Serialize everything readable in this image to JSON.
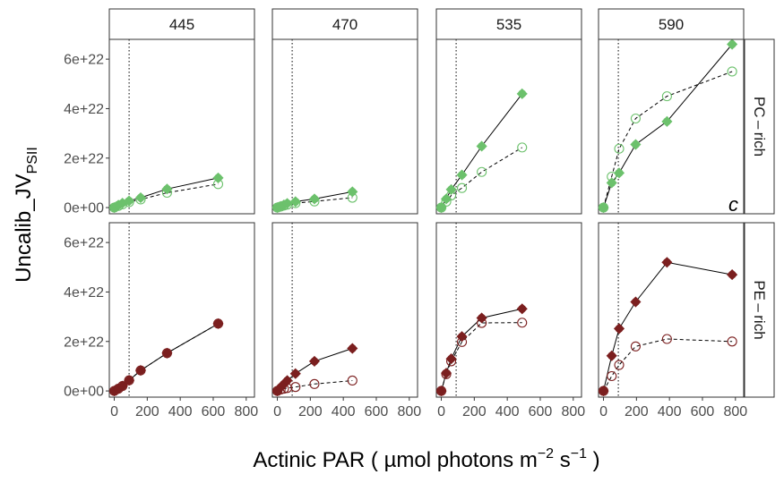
{
  "chart_data": {
    "type": "scatter",
    "x_label": {
      "main": "Actinic PAR ( µmol photons  m",
      "exp1": "−2",
      "mid": "  s",
      "exp2": "−1",
      "tail": " )"
    },
    "y_label": {
      "main": "Uncalib_JV",
      "sub": "PSII"
    },
    "x_ticks": [
      0,
      200,
      400,
      600,
      800
    ],
    "x_tick_labels": [
      "0",
      "200",
      "400",
      "600",
      "800"
    ],
    "y_ticks": [
      0,
      2e+22,
      4e+22,
      6e+22
    ],
    "y_tick_labels": [
      "0e+00",
      "2e+22",
      "4e+22",
      "6e+22"
    ],
    "xlim": [
      -30,
      850
    ],
    "ylim": [
      -2.5e+21,
      6.8e+22
    ],
    "vline_x": 90,
    "columns": [
      "445",
      "470",
      "535",
      "590"
    ],
    "rows": [
      "PC – rich",
      "PE – rich"
    ],
    "annotation": {
      "text": "c",
      "row": 0,
      "col": 3
    },
    "colors": {
      "PC - rich": "#6cc16c",
      "PE - rich": "#7b1f1f",
      "solid_line": "#000000",
      "dashed_line": "#000000"
    },
    "panels": [
      {
        "row": 0,
        "col": 0,
        "color_key": "PC - rich",
        "solid": [
          [
            0,
            0
          ],
          [
            25,
            1e+21
          ],
          [
            50,
            1.8e+21
          ],
          [
            90,
            2.7e+21
          ],
          [
            160,
            4e+21
          ],
          [
            320,
            7.5e+21
          ],
          [
            630,
            1.2e+22
          ]
        ],
        "open": [
          [
            0,
            0
          ],
          [
            25,
            7e+20
          ],
          [
            50,
            1.3e+21
          ],
          [
            90,
            2.2e+21
          ],
          [
            160,
            3.3e+21
          ],
          [
            320,
            6e+21
          ],
          [
            630,
            9.5e+21
          ]
        ]
      },
      {
        "row": 0,
        "col": 1,
        "color_key": "PC - rich",
        "solid": [
          [
            0,
            0
          ],
          [
            20,
            5e+20
          ],
          [
            40,
            1.1e+21
          ],
          [
            60,
            1.7e+21
          ],
          [
            110,
            2.4e+21
          ],
          [
            225,
            3.5e+21
          ],
          [
            455,
            6.4e+21
          ]
        ],
        "open": [
          [
            0,
            0
          ],
          [
            20,
            4e+20
          ],
          [
            40,
            8e+20
          ],
          [
            60,
            1.2e+21
          ],
          [
            110,
            1.8e+21
          ],
          [
            225,
            2.5e+21
          ],
          [
            455,
            4e+21
          ]
        ]
      },
      {
        "row": 0,
        "col": 2,
        "color_key": "PC - rich",
        "solid": [
          [
            0,
            0
          ],
          [
            30,
            3.5e+21
          ],
          [
            60,
            7.3e+21
          ],
          [
            125,
            1.32e+22
          ],
          [
            245,
            2.48e+22
          ],
          [
            490,
            4.6e+22
          ]
        ],
        "open": [
          [
            0,
            0
          ],
          [
            30,
            2.4e+21
          ],
          [
            60,
            4.9e+21
          ],
          [
            125,
            7.9e+21
          ],
          [
            245,
            1.44e+22
          ],
          [
            490,
            2.43e+22
          ]
        ]
      },
      {
        "row": 0,
        "col": 3,
        "color_key": "PC - rich",
        "solid": [
          [
            0,
            0
          ],
          [
            50,
            1e+22
          ],
          [
            95,
            1.4e+22
          ],
          [
            195,
            2.55e+22
          ],
          [
            385,
            3.48e+22
          ],
          [
            780,
            6.6e+22
          ]
        ],
        "open": [
          [
            0,
            0
          ],
          [
            50,
            1.25e+22
          ],
          [
            95,
            2.38e+22
          ],
          [
            195,
            3.6e+22
          ],
          [
            385,
            4.5e+22
          ],
          [
            780,
            5.5e+22
          ]
        ]
      },
      {
        "row": 1,
        "col": 0,
        "color_key": "PE - rich",
        "solid": [
          [
            0,
            0
          ],
          [
            25,
            9e+20
          ],
          [
            50,
            2e+21
          ],
          [
            90,
            4.3e+21
          ],
          [
            160,
            8.3e+21
          ],
          [
            320,
            1.53e+22
          ],
          [
            630,
            2.72e+22
          ]
        ],
        "open": [
          [
            0,
            0
          ],
          [
            25,
            9e+20
          ],
          [
            50,
            2e+21
          ],
          [
            90,
            4.3e+21
          ],
          [
            160,
            8.3e+21
          ],
          [
            320,
            1.53e+22
          ],
          [
            630,
            2.72e+22
          ]
        ]
      },
      {
        "row": 1,
        "col": 1,
        "color_key": "PE - rich",
        "solid": [
          [
            0,
            0
          ],
          [
            20,
            1.5e+21
          ],
          [
            40,
            2.8e+21
          ],
          [
            60,
            4.2e+21
          ],
          [
            110,
            7e+21
          ],
          [
            225,
            1.2e+22
          ],
          [
            455,
            1.72e+22
          ]
        ],
        "open": [
          [
            0,
            0
          ],
          [
            20,
            6e+20
          ],
          [
            40,
            9e+20
          ],
          [
            60,
            1.2e+21
          ],
          [
            110,
            1.6e+21
          ],
          [
            225,
            2.8e+21
          ],
          [
            455,
            4.2e+21
          ]
        ]
      },
      {
        "row": 1,
        "col": 2,
        "color_key": "PE - rich",
        "solid": [
          [
            0,
            0
          ],
          [
            30,
            7.2e+21
          ],
          [
            60,
            1.3e+22
          ],
          [
            125,
            2.2e+22
          ],
          [
            245,
            2.95e+22
          ],
          [
            490,
            3.32e+22
          ]
        ],
        "open": [
          [
            0,
            0
          ],
          [
            30,
            6.8e+21
          ],
          [
            60,
            1.2e+22
          ],
          [
            125,
            1.98e+22
          ],
          [
            245,
            2.75e+22
          ],
          [
            490,
            2.76e+22
          ]
        ]
      },
      {
        "row": 1,
        "col": 3,
        "color_key": "PE - rich",
        "solid": [
          [
            0,
            0
          ],
          [
            50,
            1.42e+22
          ],
          [
            95,
            2.52e+22
          ],
          [
            195,
            3.6e+22
          ],
          [
            385,
            5.2e+22
          ],
          [
            780,
            4.7e+22
          ]
        ],
        "open": [
          [
            0,
            0
          ],
          [
            50,
            6e+21
          ],
          [
            95,
            1.05e+22
          ],
          [
            195,
            1.8e+22
          ],
          [
            385,
            2.1e+22
          ],
          [
            780,
            2e+22
          ]
        ]
      }
    ]
  }
}
